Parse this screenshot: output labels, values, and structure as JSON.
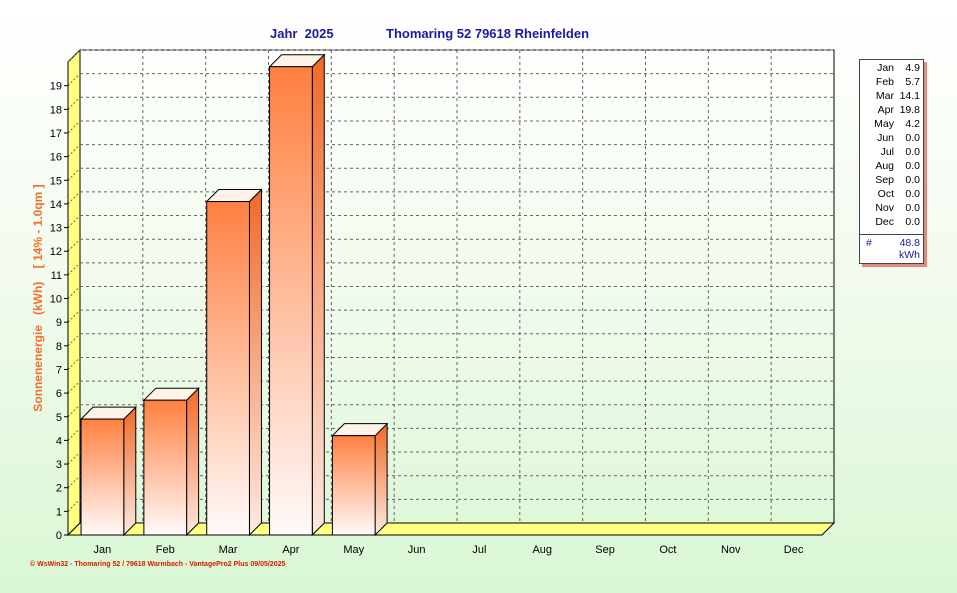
{
  "header": {
    "year_title": "Jahr  2025",
    "location_title": "Thomaring 52 79618 Rheinfelden"
  },
  "chart_data": {
    "type": "bar",
    "categories": [
      "Jan",
      "Feb",
      "Mar",
      "Apr",
      "May",
      "Jun",
      "Jul",
      "Aug",
      "Sep",
      "Oct",
      "Nov",
      "Dec"
    ],
    "values": [
      4.9,
      5.7,
      14.1,
      19.8,
      4.2,
      0.0,
      0.0,
      0.0,
      0.0,
      0.0,
      0.0,
      0.0
    ],
    "ylabel": "Sonnenenergie   (kWh)    [ 14% - 1.0qm ]",
    "xlabel": "",
    "ylim": [
      0,
      20
    ],
    "yticks": [
      0,
      1,
      2,
      3,
      4,
      5,
      6,
      7,
      8,
      9,
      10,
      11,
      12,
      13,
      14,
      15,
      16,
      17,
      18,
      19
    ],
    "grid": true,
    "legend": "right",
    "bar_color": "#ff8040",
    "platform_color": "#ffff80"
  },
  "legend": {
    "rows": [
      {
        "month": "Jan",
        "value": "4.9"
      },
      {
        "month": "Feb",
        "value": "5.7"
      },
      {
        "month": "Mar",
        "value": "14.1"
      },
      {
        "month": "Apr",
        "value": "19.8"
      },
      {
        "month": "May",
        "value": "4.2"
      },
      {
        "month": "Jun",
        "value": "0.0"
      },
      {
        "month": "Jul",
        "value": "0.0"
      },
      {
        "month": "Aug",
        "value": "0.0"
      },
      {
        "month": "Sep",
        "value": "0.0"
      },
      {
        "month": "Oct",
        "value": "0.0"
      },
      {
        "month": "Nov",
        "value": "0.0"
      },
      {
        "month": "Dec",
        "value": "0.0"
      }
    ],
    "total_symbol": "#",
    "total_value": "48.8",
    "total_unit": "kWh"
  },
  "footer": {
    "text": "© WsWin32 - Thomaring 52 / 79618 Warmbach - VantagePro2 Plus  09/05/2025"
  }
}
